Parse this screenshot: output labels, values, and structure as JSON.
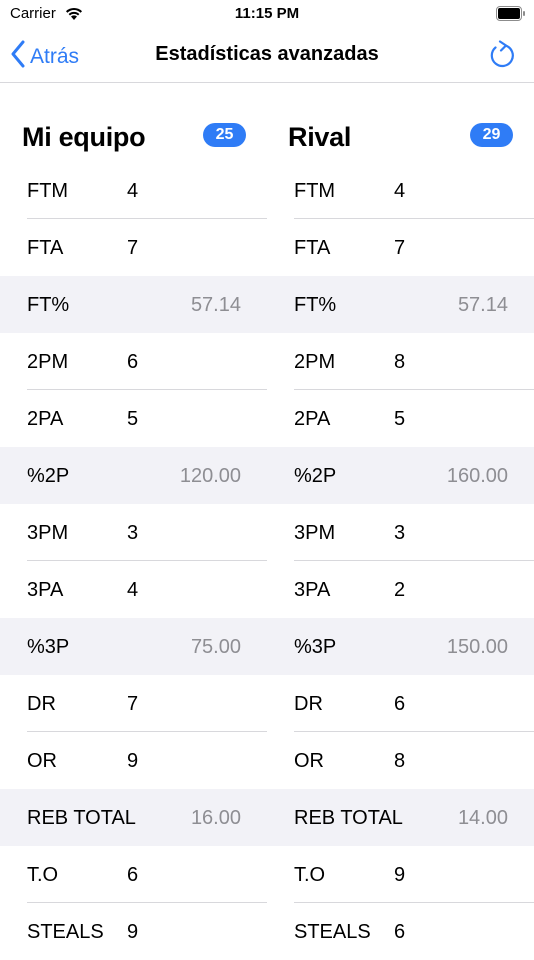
{
  "status_bar": {
    "carrier": "Carrier",
    "time": "11:15 PM"
  },
  "nav": {
    "back_label": "Atrás",
    "title": "Estadísticas avanzadas"
  },
  "teams": [
    {
      "name": "Mi equipo",
      "score": "25",
      "rows": [
        {
          "label": "FTM",
          "value": "4"
        },
        {
          "label": "FTA",
          "value": "7"
        },
        {
          "label": "FT%",
          "pct": "57.14"
        },
        {
          "label": "2PM",
          "value": "6"
        },
        {
          "label": "2PA",
          "value": "5"
        },
        {
          "label": "%2P",
          "pct": "120.00"
        },
        {
          "label": "3PM",
          "value": "3"
        },
        {
          "label": "3PA",
          "value": "4"
        },
        {
          "label": "%3P",
          "pct": "75.00"
        },
        {
          "label": "DR",
          "value": "7"
        },
        {
          "label": "OR",
          "value": "9"
        },
        {
          "label": "REB TOTAL",
          "pct": "16.00"
        },
        {
          "label": "T.O",
          "value": "6"
        },
        {
          "label": "STEALS",
          "value": "9"
        }
      ]
    },
    {
      "name": "Rival",
      "score": "29",
      "rows": [
        {
          "label": "FTM",
          "value": "4"
        },
        {
          "label": "FTA",
          "value": "7"
        },
        {
          "label": "FT%",
          "pct": "57.14"
        },
        {
          "label": "2PM",
          "value": "8"
        },
        {
          "label": "2PA",
          "value": "5"
        },
        {
          "label": "%2P",
          "pct": "160.00"
        },
        {
          "label": "3PM",
          "value": "3"
        },
        {
          "label": "3PA",
          "value": "2"
        },
        {
          "label": "%3P",
          "pct": "150.00"
        },
        {
          "label": "DR",
          "value": "6"
        },
        {
          "label": "OR",
          "value": "8"
        },
        {
          "label": "REB TOTAL",
          "pct": "14.00"
        },
        {
          "label": "T.O",
          "value": "9"
        },
        {
          "label": "STEALS",
          "value": "6"
        }
      ]
    }
  ],
  "icons": {
    "back": "chevron-left-icon",
    "refresh": "refresh-icon",
    "wifi": "wifi-icon",
    "battery": "battery-icon"
  },
  "colors": {
    "accent": "#2f7cf6",
    "shaded_row": "#f2f2f7",
    "secondary_text": "#8e8e93"
  }
}
